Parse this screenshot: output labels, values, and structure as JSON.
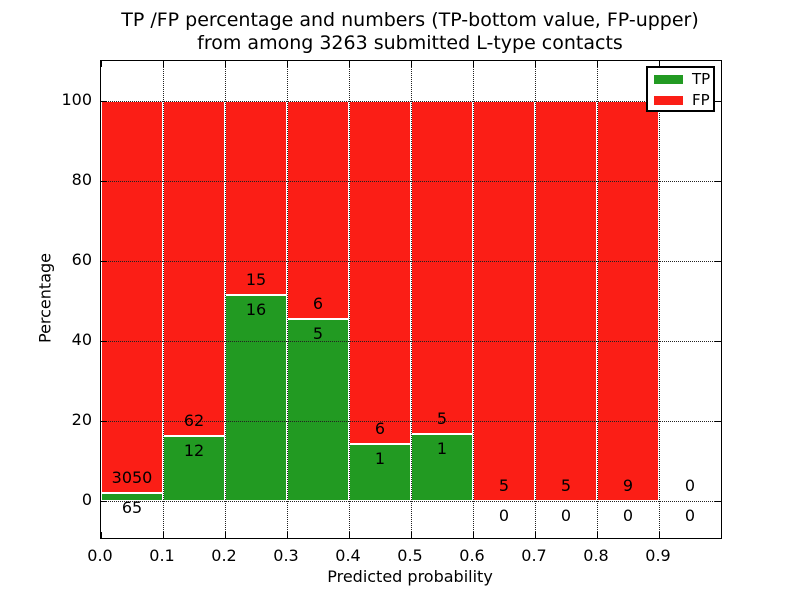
{
  "chart_data": {
    "type": "bar",
    "stacked": true,
    "title_line1": "TP /FP percentage and numbers (TP-bottom value, FP-upper)",
    "title_line2": "from among 3263 submitted L-type contacts",
    "xlabel": "Predicted probability",
    "ylabel": "Percentage",
    "bin_width": 0.1,
    "x_bin_starts": [
      0.0,
      0.1,
      0.2,
      0.3,
      0.4,
      0.5,
      0.6,
      0.7,
      0.8,
      0.9
    ],
    "series": [
      {
        "name": "TP",
        "color": "#229a22",
        "counts": [
          65,
          12,
          16,
          5,
          1,
          1,
          0,
          0,
          0,
          0
        ]
      },
      {
        "name": "FP",
        "color": "#fb1e16",
        "counts": [
          3050,
          62,
          15,
          6,
          6,
          5,
          5,
          5,
          9,
          0
        ]
      }
    ],
    "bar_unit": "percent of bin total; TP% on bottom, FP% stacked on top so non-empty bins sum to 100",
    "xticks": [
      "0.0",
      "0.1",
      "0.2",
      "0.3",
      "0.4",
      "0.5",
      "0.6",
      "0.7",
      "0.8",
      "0.9"
    ],
    "yticks": [
      0,
      20,
      40,
      60,
      80,
      100
    ],
    "xlim": [
      0,
      1.0
    ],
    "ylim": [
      -9.25,
      110
    ],
    "grid": "dotted, on both axes, drawn over bars",
    "legend": {
      "position": "upper right",
      "entries": [
        {
          "label": "TP",
          "color": "#229a22"
        },
        {
          "label": "FP",
          "color": "#fb1e16"
        }
      ]
    }
  }
}
